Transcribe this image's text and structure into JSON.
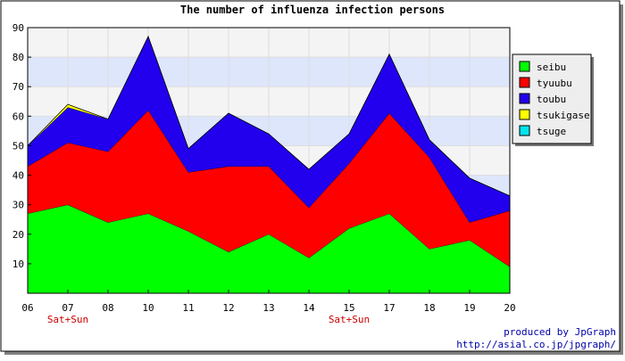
{
  "chart_data": {
    "type": "area",
    "stacked": true,
    "title": "The number of influenza infection persons",
    "categories": [
      "06",
      "07",
      "08",
      "10",
      "11",
      "12",
      "13",
      "14",
      "15",
      "17",
      "18",
      "19",
      "20"
    ],
    "category_notes": [
      "",
      "Sat+Sun",
      "",
      "",
      "",
      "",
      "",
      "",
      "Sat+Sun",
      "",
      "",
      "",
      ""
    ],
    "ylim": [
      0,
      90
    ],
    "yticks": [
      10,
      20,
      30,
      40,
      50,
      60,
      70,
      80,
      90
    ],
    "series": [
      {
        "name": "seibu",
        "color": "#00ff00",
        "values": [
          27,
          30,
          24,
          27,
          21,
          14,
          20,
          12,
          22,
          27,
          15,
          18,
          9
        ]
      },
      {
        "name": "tyuubu",
        "color": "#ff0000",
        "values": [
          16,
          21,
          24,
          35,
          20,
          29,
          23,
          17,
          22,
          34,
          31,
          6,
          19
        ]
      },
      {
        "name": "toubu",
        "color": "#2200ee",
        "values": [
          7,
          12,
          11,
          25,
          8,
          18,
          11,
          13,
          10,
          20,
          6,
          15,
          5
        ]
      },
      {
        "name": "tsukigase",
        "color": "#ffff00",
        "values": [
          0,
          1,
          0,
          0,
          0,
          0,
          0,
          0,
          0,
          0,
          0,
          0,
          0
        ]
      },
      {
        "name": "tsuge",
        "color": "#00e5ee",
        "values": [
          0,
          0,
          0,
          0,
          0,
          0,
          0,
          0,
          0,
          0,
          0,
          0,
          0
        ]
      }
    ],
    "legend_position": "right",
    "grid": true,
    "band_colors": [
      "#f4f4f4",
      "#dde6fb"
    ]
  },
  "credit": {
    "line1": "produced by JpGraph",
    "line2": "http://asial.co.jp/jpgraph/"
  },
  "colors": {
    "note": "#cc0000",
    "credit": "#0000aa",
    "legend_bg": "#eeeeee"
  }
}
